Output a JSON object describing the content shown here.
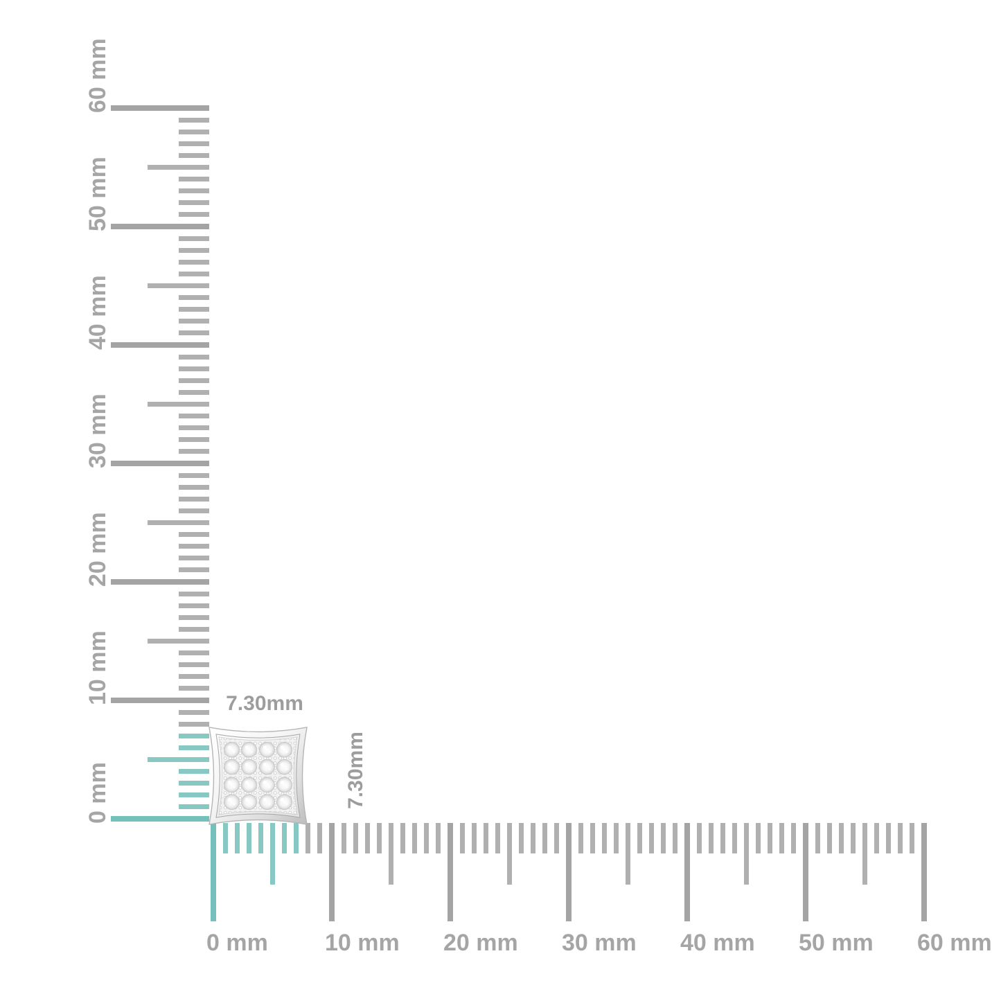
{
  "page": {
    "background": "#ffffff",
    "description": "Scale diagram of a pave diamond kite stud earring on millimeter rulers"
  },
  "product": {
    "name": "kite-shaped pave diamond stud earring",
    "width_label": "7.30mm",
    "height_label": "7.30mm",
    "metal_light": "#ffffff",
    "metal_dark": "#c4c4c4"
  },
  "rulers": {
    "unit": "mm",
    "max_mm": 60,
    "minor_step_mm": 1,
    "medium_step_mm": 5,
    "major_step_mm": 10,
    "highlight_extent_mm": 7.3,
    "vertical_labels": [
      "0 mm",
      "10 mm",
      "20 mm",
      "30 mm",
      "40 mm",
      "50 mm",
      "60 mm"
    ],
    "horizontal_labels": [
      "0 mm",
      "10 mm",
      "20 mm",
      "30 mm",
      "40 mm",
      "50 mm",
      "60 mm"
    ],
    "colors": {
      "tick_gray": "#b0b0b0",
      "tick_gray_major": "#a4a4a4",
      "tick_teal": "#87c8c3",
      "tick_teal_major": "#74c0ba",
      "label_color": "#a5a5a5",
      "measure_label_color": "#9d9d9d"
    }
  }
}
